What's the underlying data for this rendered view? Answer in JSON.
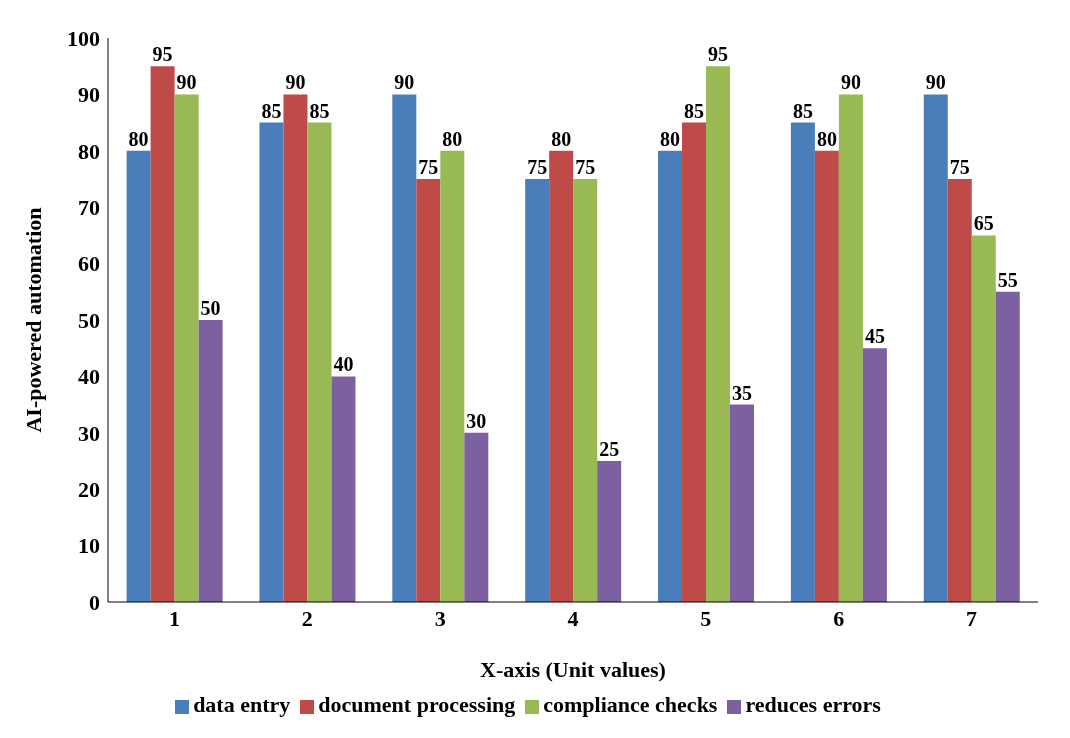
{
  "chart_data": {
    "type": "bar",
    "xlabel": "X-axis (Unit values)",
    "ylabel": "AI-powered automation",
    "categories": [
      "1",
      "2",
      "3",
      "4",
      "5",
      "6",
      "7"
    ],
    "series": [
      {
        "name": "data entry",
        "color": "#4a7ebb",
        "values": [
          80,
          85,
          90,
          75,
          80,
          85,
          90
        ]
      },
      {
        "name": "document processing",
        "color": "#be4b48",
        "values": [
          95,
          90,
          75,
          80,
          85,
          80,
          75
        ]
      },
      {
        "name": "compliance checks",
        "color": "#98b954",
        "values": [
          90,
          85,
          80,
          75,
          95,
          90,
          65
        ]
      },
      {
        "name": "reduces errors",
        "color": "#7d60a0",
        "values": [
          50,
          40,
          30,
          25,
          35,
          45,
          55
        ]
      }
    ],
    "ylim": [
      0,
      100
    ],
    "yticks": [
      0,
      10,
      20,
      30,
      40,
      50,
      60,
      70,
      80,
      90,
      100
    ],
    "grid": false,
    "legend": "bottom",
    "data_labels": true
  }
}
